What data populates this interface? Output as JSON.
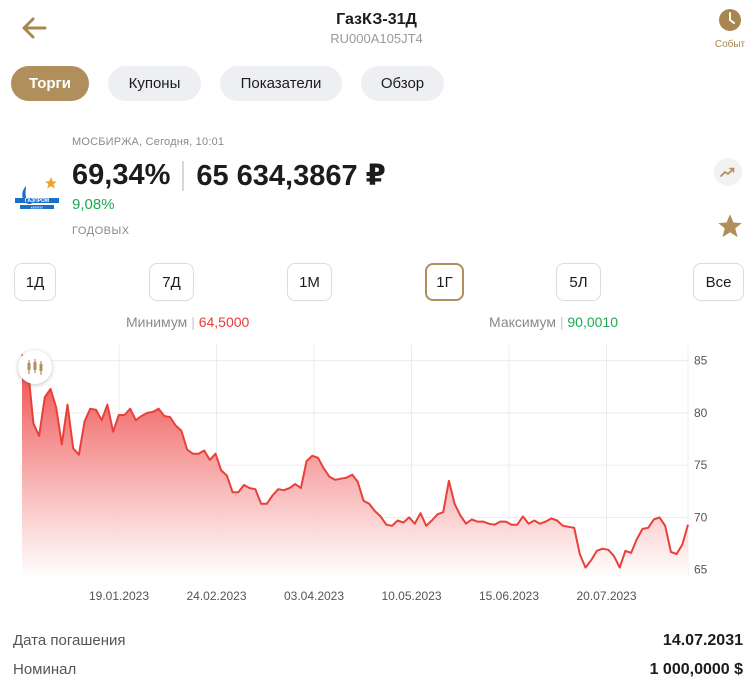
{
  "header": {
    "title": "ГазКЗ-31Д",
    "isin": "RU000A105JT4",
    "events_label": "Событ"
  },
  "tabs": [
    {
      "label": "Торги",
      "active": true
    },
    {
      "label": "Купоны",
      "active": false
    },
    {
      "label": "Показатели",
      "active": false
    },
    {
      "label": "Обзор",
      "active": false
    }
  ],
  "quote": {
    "meta": "МОСБИРЖА, Сегодня, 10:01",
    "price_percent": "69,34%",
    "price_rub": "65 634,3867 ₽",
    "yield": "9,08%",
    "yield_label": "ГОДОВЫХ",
    "logo_text": "ГАЗПРОМ",
    "logo_subtext": "капитал"
  },
  "periods": [
    {
      "label": "1Д",
      "active": false
    },
    {
      "label": "7Д",
      "active": false
    },
    {
      "label": "1М",
      "active": false
    },
    {
      "label": "1Г",
      "active": true
    },
    {
      "label": "5Л",
      "active": false
    },
    {
      "label": "Все",
      "active": false
    }
  ],
  "minmax": {
    "min_label": "Минимум",
    "min_value": "64,5000",
    "max_label": "Максимум",
    "max_value": "90,0010"
  },
  "info": {
    "maturity_label": "Дата погашения",
    "maturity_value": "14.07.2031",
    "nominal_label": "Номинал",
    "nominal_value": "1 000,0000 $"
  },
  "colors": {
    "accent": "#b08f5c",
    "line": "#e8403a",
    "positive": "#1aab52",
    "negative": "#e63c3c"
  },
  "icons": [
    "back-arrow-icon",
    "clock-icon",
    "star-icon",
    "trend-icon",
    "candlestick-icon"
  ],
  "chart_data": {
    "type": "area",
    "x_ticks": [
      "19.01.2023",
      "24.02.2023",
      "03.04.2023",
      "10.05.2023",
      "15.06.2023",
      "20.07.2023"
    ],
    "y_ticks": [
      65,
      70,
      75,
      80,
      85
    ],
    "ylim": [
      64.2,
      86.5
    ],
    "grid": true,
    "series": [
      {
        "values": [
          85.6,
          84.5,
          79.0,
          77.8,
          81.5,
          82.3,
          80.5,
          77.0,
          80.8,
          76.6,
          76.0,
          79.2,
          80.4,
          80.3,
          79.3,
          80.8,
          78.2,
          79.8,
          79.8,
          80.4,
          79.3,
          79.7,
          80.0,
          80.1,
          80.4,
          79.7,
          79.6,
          78.8,
          78.3,
          76.5,
          76.1,
          76.1,
          76.4,
          75.5,
          76.1,
          74.5,
          74.0,
          72.4,
          72.4,
          73.1,
          72.8,
          72.7,
          71.3,
          71.3,
          72.1,
          72.7,
          72.6,
          72.8,
          73.2,
          72.8,
          75.4,
          75.9,
          75.7,
          74.7,
          73.9,
          73.6,
          73.7,
          73.8,
          74.1,
          73.4,
          71.6,
          71.3,
          70.6,
          70.1,
          69.3,
          69.2,
          69.7,
          69.5,
          70.0,
          69.4,
          70.4,
          69.2,
          69.7,
          70.3,
          70.5,
          73.5,
          71.3,
          70.2,
          69.4,
          69.8,
          69.6,
          69.6,
          69.4,
          69.3,
          69.6,
          69.6,
          69.3,
          69.3,
          70.1,
          69.4,
          69.7,
          69.4,
          69.6,
          69.9,
          69.7,
          69.2,
          69.1,
          69.0,
          66.5,
          65.2,
          65.9,
          66.8,
          67.0,
          66.9,
          66.3,
          65.2,
          66.8,
          66.6,
          67.9,
          68.9,
          69.0,
          69.8,
          70.0,
          69.2,
          66.7,
          66.5,
          67.4,
          69.3
        ],
        "name": ""
      }
    ]
  }
}
